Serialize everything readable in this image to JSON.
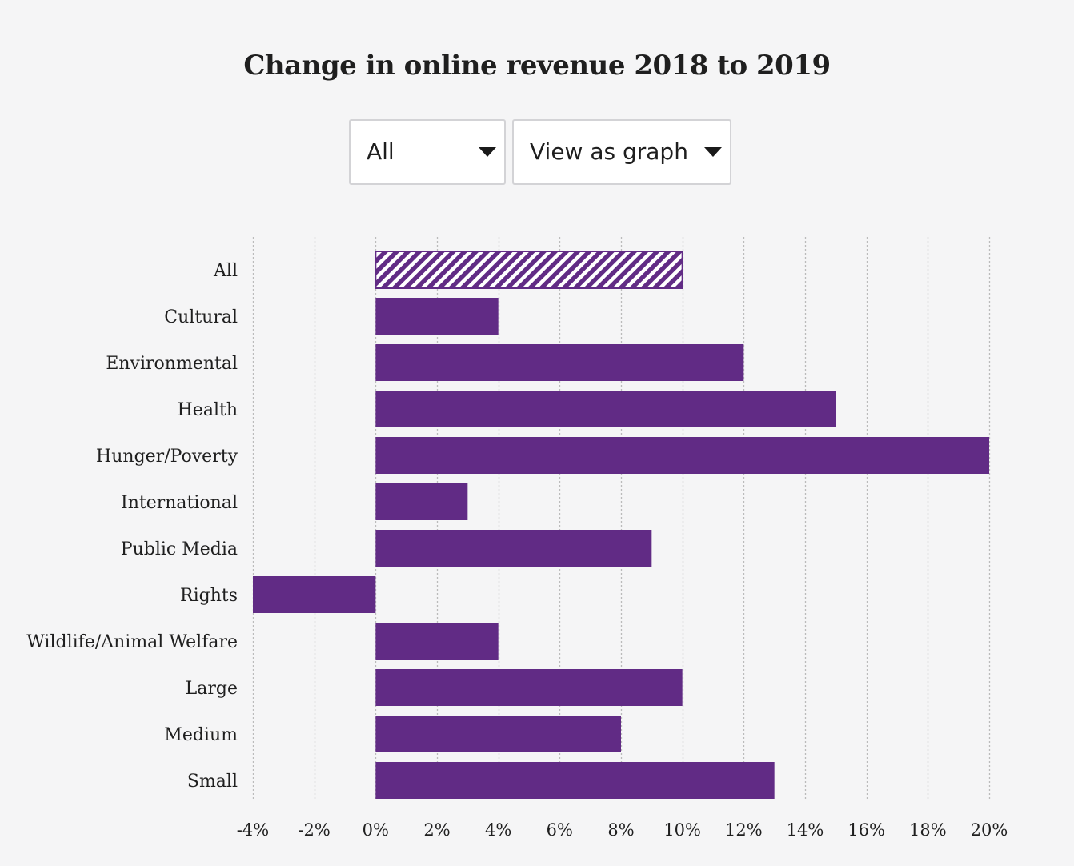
{
  "title": "Change in online revenue 2018 to 2019",
  "controls": {
    "filter": {
      "selected": "All"
    },
    "view": {
      "selected": "View as graph"
    }
  },
  "colors": {
    "bar": "#612b85",
    "background": "#f5f5f6",
    "grid": "#bbbbbb",
    "text": "#1f1f1f"
  },
  "chart_data": {
    "type": "bar",
    "orientation": "horizontal",
    "title": "Change in online revenue 2018 to 2019",
    "categories": [
      "All",
      "Cultural",
      "Environmental",
      "Health",
      "Hunger/Poverty",
      "International",
      "Public Media",
      "Rights",
      "Wildlife/Animal Welfare",
      "Large",
      "Medium",
      "Small"
    ],
    "values": [
      10,
      4,
      12,
      15,
      20,
      3,
      9,
      -4,
      4,
      10,
      8,
      13
    ],
    "highlight": [
      "All"
    ],
    "unit": "%",
    "xlim": [
      -4,
      20
    ],
    "xticks": [
      -4,
      -2,
      0,
      2,
      4,
      6,
      8,
      10,
      12,
      14,
      16,
      18,
      20
    ],
    "tick_labels": [
      "-4%",
      "-2%",
      "0%",
      "2%",
      "4%",
      "6%",
      "8%",
      "10%",
      "12%",
      "14%",
      "16%",
      "18%",
      "20%"
    ],
    "grid": "vertical dotted",
    "xlabel": "",
    "ylabel": ""
  }
}
